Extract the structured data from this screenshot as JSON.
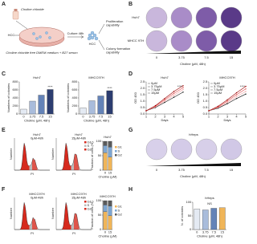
{
  "panels": [
    "A",
    "B",
    "C",
    "D",
    "E",
    "F",
    "G",
    "H"
  ],
  "diagram": {
    "reagent": "Choline chloride",
    "medium": "Choline chloride free DMEM medium + B27 serum",
    "cells": "HCC",
    "culture": "Culture 48h",
    "cells_after": "HCC",
    "outcome_1": [
      "Proliferation",
      "capability"
    ],
    "outcome_2": [
      "Colony formation",
      "capability"
    ]
  },
  "plates": {
    "rows": [
      "Huh7",
      "MHCC 97H"
    ],
    "doses": [
      "0",
      "3.75",
      "7.5",
      "15"
    ],
    "x_label": "Choline (μM, 48h)"
  },
  "hepatocyte_plates": {
    "title": "hHeps",
    "doses": [
      "0",
      "3.75",
      "7.5",
      "15"
    ],
    "x_label": "Choline (μM, 48h)"
  },
  "flow": {
    "y_label": "Number",
    "x_label": "PI",
    "legend": [
      "G1",
      "S",
      "G2"
    ],
    "plots": [
      {
        "title": "Huh7",
        "subtitle": "0μM-48h"
      },
      {
        "title": "Huh7",
        "subtitle": "15μM-48h"
      },
      {
        "title": "MHCC97H",
        "subtitle": "0μM-48h"
      },
      {
        "title": "MHCC97H",
        "subtitle": "15μM-48h"
      }
    ]
  },
  "chart_data": [
    {
      "type": "bar",
      "title": "Huh7",
      "categories": [
        "0",
        "3.75",
        "7.5",
        "15"
      ],
      "values": [
        120,
        320,
        470,
        610
      ],
      "colors": [
        "#e4eaf3",
        "#a9bcdb",
        "#6483b8",
        "#2c3d70"
      ],
      "ylim": [
        0,
        800
      ],
      "yticks": [
        0,
        200,
        400,
        600,
        800
      ],
      "y_label": "Numbers of colonies",
      "x_label": "Choline (μM, 48h)",
      "annotation": "****"
    },
    {
      "type": "bar",
      "title": "MHCC97H",
      "categories": [
        "0",
        "3.75",
        "7.5",
        "15"
      ],
      "values": [
        150,
        330,
        450,
        580
      ],
      "colors": [
        "#e4eaf3",
        "#a9bcdb",
        "#6483b8",
        "#2c3d70"
      ],
      "ylim": [
        0,
        800
      ],
      "yticks": [
        0,
        200,
        400,
        600,
        800
      ],
      "y_label": "Numbers of colonies",
      "x_label": "Choline (μM, 48h)",
      "annotation": "****"
    },
    {
      "type": "line",
      "title": "Huh7",
      "x": [
        1,
        2,
        3,
        4,
        5
      ],
      "xlim": [
        1,
        5
      ],
      "xticks": [
        1,
        2,
        3,
        4,
        5
      ],
      "ylim": [
        0,
        2.5
      ],
      "yticks": [
        {
          "value": 0,
          "label": "0.0"
        },
        0.5,
        {
          "value": 1,
          "label": "1.0"
        },
        1.5,
        {
          "value": 2,
          "label": "2.0"
        },
        2.5
      ],
      "y_label": "OD 450",
      "x_label": "Days",
      "annotation": "****",
      "series": [
        {
          "name": "0μM",
          "color": "#111111",
          "values": [
            0.25,
            0.5,
            0.9,
            1.3,
            1.7
          ]
        },
        {
          "name": "3.75μM",
          "color": "#f2a0a0",
          "values": [
            0.25,
            0.55,
            1.0,
            1.45,
            1.9
          ]
        },
        {
          "name": "7.5μM",
          "color": "#e04848",
          "values": [
            0.25,
            0.6,
            1.1,
            1.6,
            2.05
          ]
        },
        {
          "name": "15μM",
          "color": "#9a0000",
          "values": [
            0.25,
            0.65,
            1.2,
            1.75,
            2.2
          ]
        }
      ]
    },
    {
      "type": "line",
      "title": "MHCC97H",
      "x": [
        1,
        2,
        3,
        4,
        5
      ],
      "xlim": [
        1,
        5
      ],
      "xticks": [
        1,
        2,
        3,
        4,
        5
      ],
      "ylim": [
        0,
        2.5
      ],
      "yticks": [
        {
          "value": 0,
          "label": "0.0"
        },
        0.5,
        {
          "value": 1,
          "label": "1.0"
        },
        1.5,
        {
          "value": 2,
          "label": "2.0"
        },
        2.5
      ],
      "y_label": "OD 450",
      "x_label": "Days",
      "annotation": "****",
      "series": [
        {
          "name": "0μM",
          "color": "#111111",
          "values": [
            0.25,
            0.45,
            0.8,
            1.2,
            1.55
          ]
        },
        {
          "name": "3.75μM",
          "color": "#f2a0a0",
          "values": [
            0.25,
            0.5,
            0.9,
            1.35,
            1.75
          ]
        },
        {
          "name": "7.5μM",
          "color": "#e04848",
          "values": [
            0.25,
            0.55,
            1.0,
            1.5,
            1.95
          ]
        },
        {
          "name": "15μM",
          "color": "#9a0000",
          "values": [
            0.25,
            0.6,
            1.1,
            1.65,
            2.15
          ]
        }
      ]
    },
    {
      "type": "stacked_bar",
      "title": "Huh7",
      "categories": [
        "0",
        "15"
      ],
      "ylim": [
        0,
        100
      ],
      "yticks": [
        0,
        50,
        100
      ],
      "y_label": "Fraction of cells (%)",
      "x_label": "Choline (μM)",
      "series": [
        {
          "name": "G1",
          "color": "#f0b558",
          "values": [
            60,
            45
          ]
        },
        {
          "name": "S",
          "color": "#7da6d2",
          "values": [
            25,
            35
          ]
        },
        {
          "name": "G2",
          "color": "#5a5a5a",
          "values": [
            15,
            20
          ]
        }
      ]
    },
    {
      "type": "stacked_bar",
      "title": "MHCC97H",
      "categories": [
        "0",
        "15"
      ],
      "ylim": [
        0,
        100
      ],
      "yticks": [
        0,
        50,
        100
      ],
      "y_label": "Fraction of cells (%)",
      "x_label": "Choline (μM)",
      "series": [
        {
          "name": "G1",
          "color": "#f0b558",
          "values": [
            62,
            48
          ]
        },
        {
          "name": "S",
          "color": "#7da6d2",
          "values": [
            23,
            33
          ]
        },
        {
          "name": "G2",
          "color": "#5a5a5a",
          "values": [
            15,
            19
          ]
        }
      ]
    },
    {
      "type": "bar",
      "title": "hHeps",
      "categories": [
        "0",
        "3.75",
        "7.5",
        "15"
      ],
      "values": [
        75,
        72,
        78,
        80
      ],
      "colors": [
        "#e4eaf3",
        "#a9bcdb",
        "#6483b8",
        "#f0b558"
      ],
      "ylim": [
        0,
        100
      ],
      "yticks": [
        0,
        50,
        100
      ],
      "y_label": "N. of colonies",
      "x_label": "Choline (μM, 48h)",
      "annotation": "NS"
    }
  ]
}
